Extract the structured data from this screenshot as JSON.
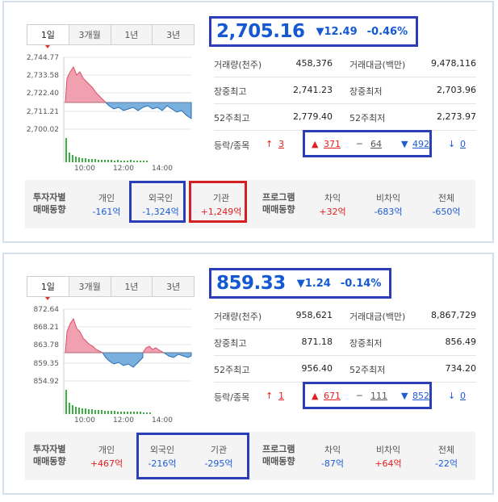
{
  "tabs": [
    "1일",
    "3개월",
    "1년",
    "3년"
  ],
  "time_ticks": [
    "10:00",
    "12:00",
    "14:00"
  ],
  "colors": {
    "up": "#e02020",
    "down": "#1f5bd3",
    "highlight_blue": "#2c3db8",
    "highlight_red": "#d42020",
    "volume": "#3cb043"
  },
  "panels": [
    {
      "yticks": [
        "2,744.77",
        "2,733.58",
        "2,722.40",
        "2,711.21",
        "2,700.02"
      ],
      "price": "2,705.16",
      "change": "▼12.49",
      "change_pct": "-0.46%",
      "stats": [
        {
          "l1": "거래량(천주)",
          "v1": "458,376",
          "l2": "거래대금(백만)",
          "v2": "9,478,116"
        },
        {
          "l1": "장중최고",
          "v1": "2,741.23",
          "l2": "장중최저",
          "v2": "2,703.96"
        },
        {
          "l1": "52주최고",
          "v1": "2,779.40",
          "l2": "52주최저",
          "v2": "2,273.97"
        }
      ],
      "updown": {
        "label": "등락/종목",
        "upper": "3",
        "up": "371",
        "flat": "64",
        "down": "492",
        "lower": "0"
      },
      "investor": {
        "label1": "투자자별",
        "label2": "매매동향",
        "items": [
          {
            "name": "개인",
            "value": "-161억"
          },
          {
            "name": "외국인",
            "value": "-1,324억"
          },
          {
            "name": "기관",
            "value": "+1,249억"
          }
        ]
      },
      "program": {
        "label1": "프로그램",
        "label2": "매매동향",
        "items": [
          {
            "name": "차익",
            "value": "+32억"
          },
          {
            "name": "비차익",
            "value": "-683억"
          },
          {
            "name": "전체",
            "value": "-650억"
          }
        ]
      }
    },
    {
      "yticks": [
        "872.64",
        "868.21",
        "863.78",
        "859.35",
        "854.92"
      ],
      "price": "859.33",
      "change": "▼1.24",
      "change_pct": "-0.14%",
      "stats": [
        {
          "l1": "거래량(천주)",
          "v1": "958,621",
          "l2": "거래대금(백만)",
          "v2": "8,867,729"
        },
        {
          "l1": "장중최고",
          "v1": "871.18",
          "l2": "장중최저",
          "v2": "856.49"
        },
        {
          "l1": "52주최고",
          "v1": "956.40",
          "l2": "52주최저",
          "v2": "734.20"
        }
      ],
      "updown": {
        "label": "등락/종목",
        "upper": "1",
        "up": "671",
        "flat": "111",
        "down": "852",
        "lower": "0"
      },
      "investor": {
        "label1": "투자자별",
        "label2": "매매동향",
        "items": [
          {
            "name": "개인",
            "value": "+467억"
          },
          {
            "name": "외국인",
            "value": "-216억"
          },
          {
            "name": "기관",
            "value": "-295억"
          }
        ]
      },
      "program": {
        "label1": "프로그램",
        "label2": "매매동향",
        "items": [
          {
            "name": "차익",
            "value": "-87억"
          },
          {
            "name": "비차익",
            "value": "+64억"
          },
          {
            "name": "전체",
            "value": "-22억"
          }
        ]
      }
    }
  ]
}
